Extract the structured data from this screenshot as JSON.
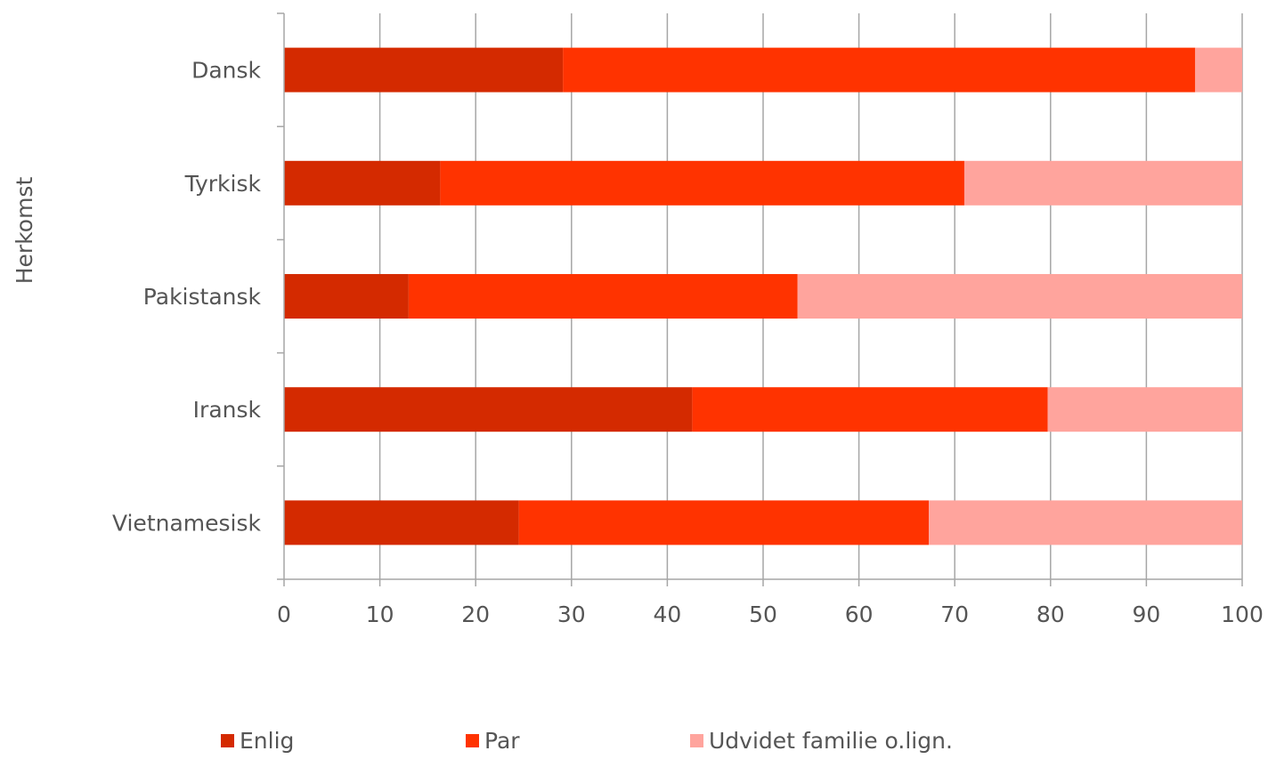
{
  "chart_data": {
    "type": "bar",
    "orientation": "horizontal",
    "stacked": true,
    "ylabel": "Herkomst",
    "xlabel": "",
    "xlim": [
      0,
      100
    ],
    "xticks": [
      "0",
      "10",
      "20",
      "30",
      "40",
      "50",
      "60",
      "70",
      "80",
      "90",
      "100"
    ],
    "grid": true,
    "legend_position": "bottom",
    "categories": [
      "Dansk",
      "Tyrkisk",
      "Pakistansk",
      "Iransk",
      "Vietnamesisk"
    ],
    "series": [
      {
        "name": "Enlig",
        "color": "#d42a00",
        "values": [
          29.1,
          16.3,
          13.0,
          42.6,
          24.5
        ]
      },
      {
        "name": "Par",
        "color": "#ff3300",
        "values": [
          66.0,
          54.7,
          40.6,
          37.1,
          42.8
        ]
      },
      {
        "name": "Udvidet familie o.lign.",
        "color": "#ffa49d",
        "values": [
          4.9,
          29.0,
          46.4,
          20.3,
          32.7
        ]
      }
    ]
  }
}
